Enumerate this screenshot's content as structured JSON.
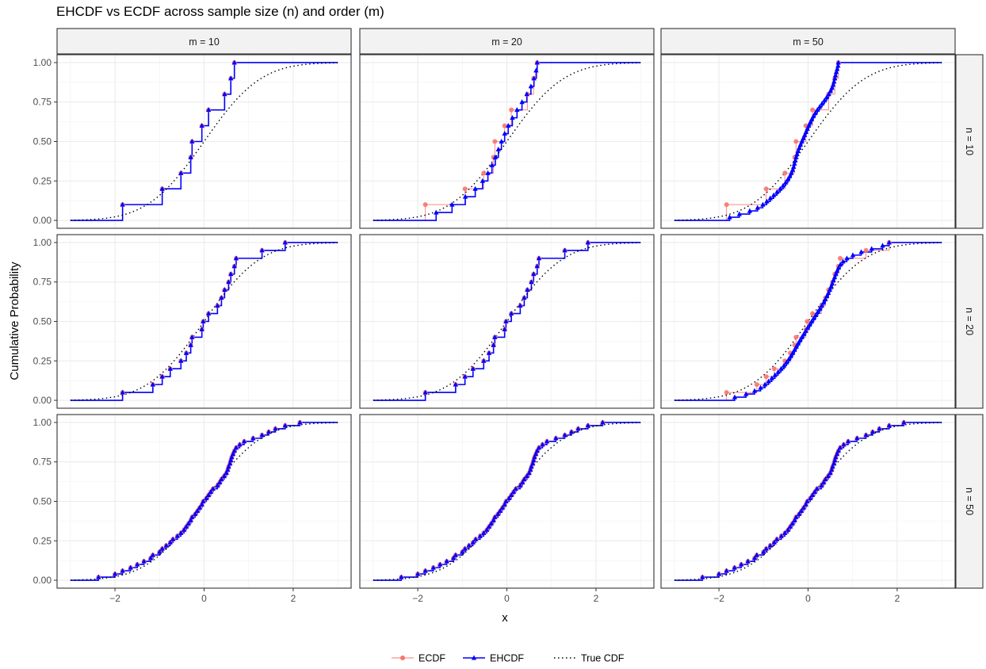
{
  "chart_data": {
    "type": "line",
    "title": "EHCDF vs ECDF across sample size (n) and order (m)",
    "xlabel": "x",
    "ylabel": "Cumulative Probability",
    "xlim": [
      -3,
      3
    ],
    "ylim": [
      0,
      1
    ],
    "x_ticks": [
      "−2",
      "0",
      "2"
    ],
    "x_tick_values": [
      -2,
      0,
      2
    ],
    "y_ticks": [
      "0.00",
      "0.25",
      "0.50",
      "0.75",
      "1.00"
    ],
    "y_tick_values": [
      0,
      0.25,
      0.5,
      0.75,
      1
    ],
    "grid": true,
    "facet_cols": [
      "m = 10",
      "m = 20",
      "m = 50"
    ],
    "facet_rows": [
      "n = 10",
      "n = 20",
      "n = 50"
    ],
    "legend_position": "bottom",
    "series": [
      {
        "name": "ECDF",
        "color": "#F8766D",
        "style": "step",
        "marker": "circle"
      },
      {
        "name": "EHCDF",
        "color": "#0000FF",
        "style": "step",
        "marker": "triangle"
      },
      {
        "name": "True CDF",
        "color": "#000000",
        "style": "dotted"
      }
    ],
    "samples": {
      "n = 10": [
        -1.83,
        -0.94,
        -0.52,
        -0.3,
        -0.27,
        -0.05,
        0.1,
        0.46,
        0.6,
        0.68
      ],
      "n = 20": [
        -1.83,
        -1.15,
        -0.94,
        -0.76,
        -0.52,
        -0.4,
        -0.3,
        -0.27,
        -0.05,
        -0.02,
        0.1,
        0.3,
        0.39,
        0.46,
        0.55,
        0.6,
        0.68,
        0.72,
        1.3,
        1.82
      ],
      "n = 50": [
        -2.37,
        -2.0,
        -1.83,
        -1.65,
        -1.5,
        -1.35,
        -1.2,
        -1.15,
        -1.0,
        -0.94,
        -0.85,
        -0.76,
        -0.7,
        -0.6,
        -0.52,
        -0.45,
        -0.4,
        -0.35,
        -0.3,
        -0.27,
        -0.2,
        -0.15,
        -0.1,
        -0.05,
        -0.02,
        0.05,
        0.1,
        0.15,
        0.2,
        0.3,
        0.35,
        0.39,
        0.45,
        0.5,
        0.53,
        0.55,
        0.58,
        0.6,
        0.62,
        0.65,
        0.68,
        0.72,
        0.8,
        0.9,
        1.1,
        1.3,
        1.45,
        1.6,
        1.82,
        2.15
      ]
    }
  }
}
